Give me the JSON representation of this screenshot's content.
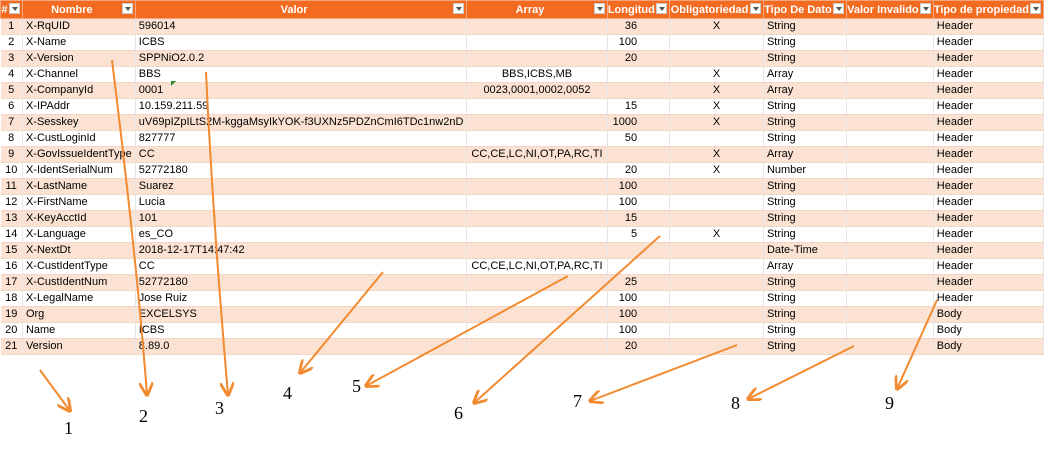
{
  "headers": [
    "#",
    "Nombre",
    "Valor",
    "Array",
    "Longitud",
    "Obligatoriedad",
    "Tipo De Dato",
    "Valor Invalido",
    "Tipo de propiedad"
  ],
  "rows": [
    [
      "1",
      "X-RqUID",
      "596014",
      "",
      "36",
      "X",
      "String",
      "",
      "Header"
    ],
    [
      "2",
      "X-Name",
      "ICBS",
      "",
      "100",
      "",
      "String",
      "",
      "Header"
    ],
    [
      "3",
      "X-Version",
      "SPPNiO2.0.2",
      "",
      "20",
      "",
      "String",
      "",
      "Header"
    ],
    [
      "4",
      "X-Channel",
      "BBS",
      "BBS,ICBS,MB",
      "",
      "X",
      "Array",
      "",
      "Header"
    ],
    [
      "5",
      "X-CompanyId",
      "0001",
      "0023,0001,0002,0052",
      "",
      "X",
      "Array",
      "",
      "Header"
    ],
    [
      "6",
      "X-IPAddr",
      "10.159.211.59",
      "",
      "15",
      "X",
      "String",
      "",
      "Header"
    ],
    [
      "7",
      "X-Sesskey",
      "uV69pIZpILtS2M-kggaMsyIkYOK-f3UXNz5PDZnCmI6TDc1nw2nD",
      "",
      "1000",
      "X",
      "String",
      "",
      "Header"
    ],
    [
      "8",
      "X-CustLoginId",
      "827777",
      "",
      "50",
      "",
      "String",
      "",
      "Header"
    ],
    [
      "9",
      "X-GovIssueIdentType",
      "CC",
      "CC,CE,LC,NI,OT,PA,RC,TI",
      "",
      "X",
      "Array",
      "",
      "Header"
    ],
    [
      "10",
      "X-IdentSerialNum",
      "52772180",
      "",
      "20",
      "X",
      "Number",
      "",
      "Header"
    ],
    [
      "11",
      "X-LastName",
      "Suarez",
      "",
      "100",
      "",
      "String",
      "",
      "Header"
    ],
    [
      "12",
      "X-FirstName",
      "Lucia",
      "",
      "100",
      "",
      "String",
      "",
      "Header"
    ],
    [
      "13",
      "X-KeyAcctId",
      "101",
      "",
      "15",
      "",
      "String",
      "",
      "Header"
    ],
    [
      "14",
      "X-Language",
      "es_CO",
      "",
      "5",
      "X",
      "String",
      "",
      "Header"
    ],
    [
      "15",
      "X-NextDt",
      "2018-12-17T14:47:42",
      "",
      "",
      "",
      "Date-Time",
      "",
      "Header"
    ],
    [
      "16",
      "X-CustIdentType",
      "CC",
      "CC,CE,LC,NI,OT,PA,RC,TI",
      "",
      "",
      "Array",
      "",
      "Header"
    ],
    [
      "17",
      "X-CustIdentNum",
      "52772180",
      "",
      "25",
      "",
      "String",
      "",
      "Header"
    ],
    [
      "18",
      "X-LegalName",
      "Jose Ruiz",
      "",
      "100",
      "",
      "String",
      "",
      "Header"
    ],
    [
      "19",
      "Org",
      "EXCELSYS",
      "",
      "100",
      "",
      "String",
      "",
      "Body"
    ],
    [
      "20",
      "Name",
      "ICBS",
      "",
      "100",
      "",
      "String",
      "",
      "Body"
    ],
    [
      "21",
      "Version",
      "8.89.0",
      "",
      "20",
      "",
      "String",
      "",
      "Body"
    ]
  ],
  "callouts": [
    "1",
    "2",
    "3",
    "4",
    "5",
    "6",
    "7",
    "8",
    "9"
  ],
  "colors": {
    "header_bg": "#f26b21",
    "band": "#fbe2d2",
    "arrow": "#f28a30"
  }
}
